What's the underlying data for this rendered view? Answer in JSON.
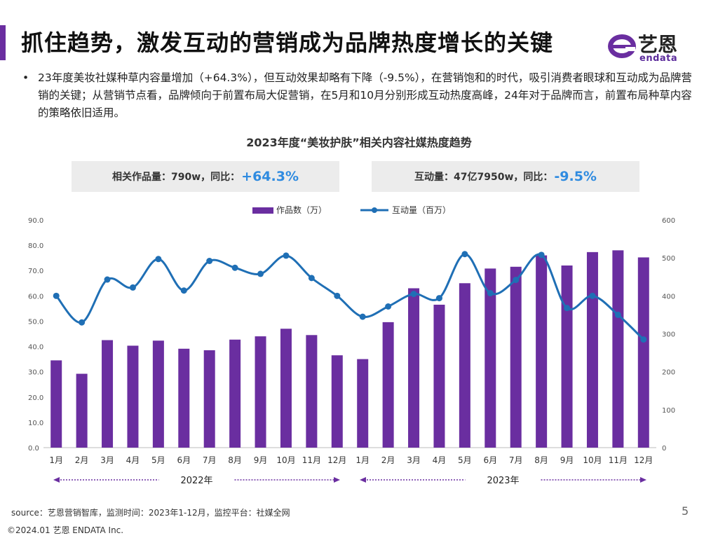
{
  "header": {
    "title": "抓住趋势，激发互动的营销成为品牌热度增长的关键",
    "logo_text": "艺恩",
    "logo_sub": "endata"
  },
  "bullet": {
    "dot": "•",
    "text": "23年度美妆社媒种草内容量增加（+64.3%），但互动效果却略有下降（-9.5%），在营销饱和的时代，吸引消费者眼球和互动成为品牌营销的关键；从营销节点看，品牌倾向于前置布局大促营销，在5月和10月分别形成互动热度高峰，24年对于品牌而言，前置布局种草内容的策略依旧适用。"
  },
  "kpis": {
    "works_label": "相关作品量：790w，同比：",
    "works_value": "+64.3%",
    "interaction_label": "互动量：47亿7950w，同比：",
    "interaction_value": "-9.5%"
  },
  "chart_data": {
    "type": "bar+line",
    "title": "2023年度“美妆护肤”相关内容社媒热度趋势",
    "categories": [
      "1月",
      "2月",
      "3月",
      "4月",
      "5月",
      "6月",
      "7月",
      "8月",
      "9月",
      "10月",
      "11月",
      "12月",
      "1月",
      "2月",
      "3月",
      "4月",
      "5月",
      "6月",
      "7月",
      "8月",
      "9月",
      "10月",
      "11月",
      "12月"
    ],
    "groups": [
      {
        "label": "2022年",
        "span": [
          0,
          11
        ]
      },
      {
        "label": "2023年",
        "span": [
          12,
          23
        ]
      }
    ],
    "series": [
      {
        "name": "作品数（万）",
        "type": "bar",
        "axis": "left",
        "color": "#6a2ea0",
        "values": [
          34.5,
          29.2,
          42.5,
          40.3,
          42.3,
          39.1,
          38.5,
          42.7,
          44.0,
          47.0,
          44.5,
          36.5,
          35.0,
          49.6,
          63.0,
          56.5,
          65.0,
          70.8,
          71.5,
          76.0,
          72.0,
          77.3,
          78.0,
          75.2
        ]
      },
      {
        "name": "互动量（百万）",
        "type": "line",
        "axis": "right",
        "color": "#1f6fb5",
        "values": [
          400,
          330,
          443,
          422,
          497,
          414,
          492,
          474,
          458,
          506,
          447,
          400,
          345,
          372,
          405,
          394,
          510,
          407,
          442,
          508,
          368,
          400,
          350,
          285
        ]
      }
    ],
    "y_left": {
      "min": 0,
      "max": 90,
      "step": 10,
      "ticks": [
        "0.0",
        "10.0",
        "20.0",
        "30.0",
        "40.0",
        "50.0",
        "60.0",
        "70.0",
        "80.0",
        "90.0"
      ]
    },
    "y_right": {
      "min": 0,
      "max": 600,
      "step": 100,
      "ticks": [
        "0",
        "100",
        "200",
        "300",
        "400",
        "500",
        "600"
      ]
    },
    "legend_position": "top-center"
  },
  "footer": {
    "source": "source：艺恩营销智库，监测时间：2023年1-12月，监控平台：社媒全网",
    "copyright": "©2024.01  艺恩 ENDATA Inc.",
    "page": "5"
  },
  "colors": {
    "accent": "#6a2ea0",
    "line": "#1f6fb5",
    "kpi_value": "#2f8be0"
  }
}
